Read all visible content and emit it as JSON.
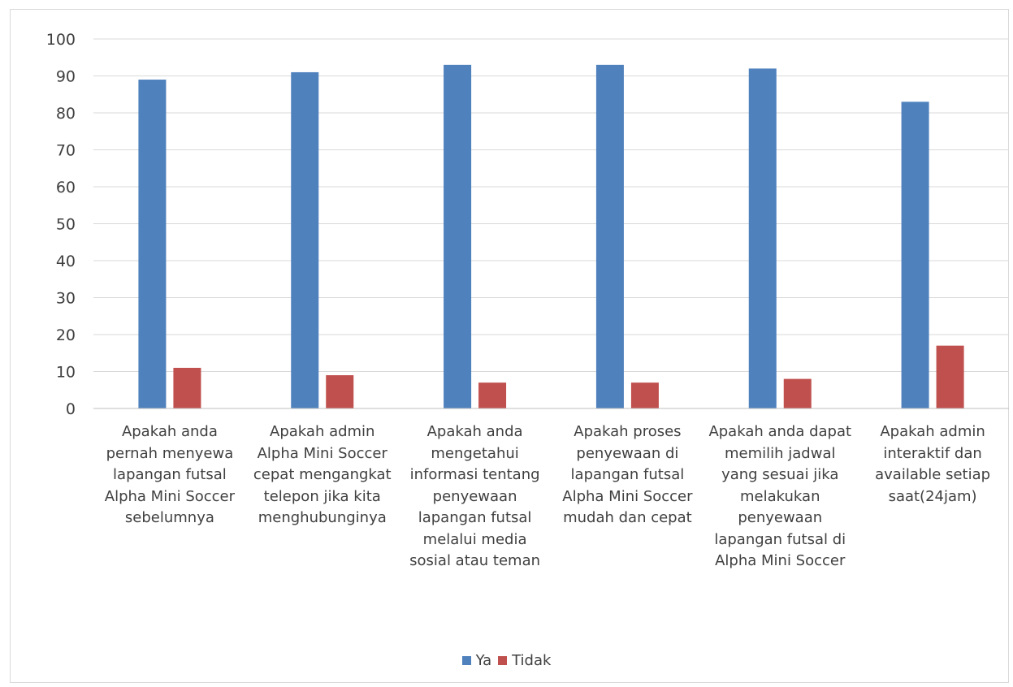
{
  "chart_data": {
    "type": "bar",
    "title": "",
    "xlabel": "",
    "ylabel": "",
    "ylim": [
      0,
      100
    ],
    "yticks": [
      0,
      10,
      20,
      30,
      40,
      50,
      60,
      70,
      80,
      90,
      100
    ],
    "grid": true,
    "legend_position": "bottom",
    "categories": [
      "Apakah anda\npernah menyewa\nlapangan futsal\nAlpha Mini Soccer\nsebelumnya",
      "Apakah admin\nAlpha Mini Soccer\ncepat mengangkat\ntelepon jika kita\nmenghubunginya",
      "Apakah anda\nmengetahui\ninformasi tentang\npenyewaan\nlapangan futsal\nmelalui media\nsosial atau teman",
      "Apakah proses\npenyewaan di\nlapangan futsal\nAlpha Mini Soccer\nmudah dan cepat",
      "Apakah anda dapat\nmemilih jadwal\nyang sesuai jika\nmelakukan\npenyewaan\nlapangan futsal di\nAlpha Mini Soccer",
      "Apakah admin\ninteraktif dan\navailable setiap\nsaat(24jam)"
    ],
    "series": [
      {
        "name": "Ya",
        "color": "#4f81bd",
        "values": [
          89,
          91,
          93,
          93,
          92,
          83
        ]
      },
      {
        "name": "Tidak",
        "color": "#c0504d",
        "values": [
          11,
          9,
          7,
          7,
          8,
          17
        ]
      }
    ]
  }
}
